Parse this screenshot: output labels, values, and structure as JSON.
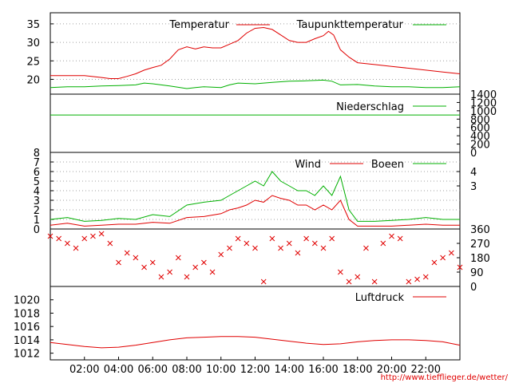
{
  "colors": {
    "red": "#e00000",
    "green": "#00b000",
    "black": "#000000",
    "grid": "#a0a0a0"
  },
  "credit": "http://www.tiefflieger.de/wetter/",
  "x_axis": {
    "labels": [
      "02:00",
      "04:00",
      "06:00",
      "08:00",
      "10:00",
      "12:00",
      "14:00",
      "16:00",
      "18:00",
      "20:00",
      "22:00"
    ],
    "hour_range": [
      0,
      24
    ],
    "label_hours": [
      2,
      4,
      6,
      8,
      10,
      12,
      14,
      16,
      18,
      20,
      22
    ]
  },
  "chart_data": [
    {
      "type": "line",
      "panel": "temperature",
      "ylim": [
        16,
        38
      ],
      "y_ticks": [
        20,
        25,
        30,
        35
      ],
      "grid": true,
      "legend_placement": "top",
      "series": [
        {
          "name": "Temperatur",
          "color": "#e00000",
          "x": [
            0,
            1,
            2,
            3,
            3.5,
            4,
            4.5,
            5,
            5.5,
            6,
            6.5,
            7,
            7.5,
            8,
            8.5,
            9,
            9.5,
            10,
            10.5,
            11,
            11.5,
            12,
            12.5,
            13,
            13.5,
            14,
            14.5,
            15,
            15.5,
            16,
            16.3,
            16.6,
            17,
            17.5,
            18,
            19,
            20,
            21,
            22,
            23,
            24
          ],
          "y": [
            21,
            21,
            21,
            20.5,
            20.2,
            20.2,
            20.8,
            21.5,
            22.5,
            23.2,
            23.8,
            25.5,
            28,
            28.8,
            28.2,
            28.8,
            28.5,
            28.5,
            29.5,
            30.5,
            32.5,
            33.8,
            34,
            33.5,
            32,
            30.5,
            30,
            30,
            31,
            31.8,
            33,
            32,
            28,
            26,
            24.5,
            24,
            23.5,
            23,
            22.5,
            22,
            21.5
          ]
        },
        {
          "name": "Taupunkttemperatur",
          "color": "#00b000",
          "x": [
            0,
            1,
            2,
            3,
            4,
            5,
            5.5,
            6,
            7,
            8,
            8.5,
            9,
            10,
            10.5,
            11,
            12,
            13,
            14,
            15,
            16,
            16.5,
            17,
            18,
            19,
            20,
            21,
            22,
            23,
            24
          ],
          "y": [
            17.8,
            18,
            18,
            18.2,
            18.3,
            18.5,
            19,
            18.8,
            18.2,
            17.5,
            17.8,
            18,
            17.8,
            18.5,
            19,
            18.8,
            19.2,
            19.5,
            19.6,
            19.8,
            19.5,
            18.5,
            18.6,
            18.2,
            18,
            18,
            17.8,
            17.8,
            18
          ]
        }
      ]
    },
    {
      "type": "line",
      "panel": "precipitation",
      "ylim": [
        0,
        1400
      ],
      "y_ticks": [
        0,
        200,
        400,
        600,
        800,
        1000,
        1200,
        1400
      ],
      "grid": false,
      "legend_placement": "top",
      "series": [
        {
          "name": "Niederschlag",
          "color": "#00b000",
          "x": [
            0,
            24
          ],
          "y": [
            900,
            900
          ]
        }
      ]
    },
    {
      "type": "line",
      "panel": "wind",
      "ylim": [
        0,
        8
      ],
      "y_ticks": [
        0,
        1,
        2,
        3,
        4,
        5,
        6,
        7,
        8
      ],
      "y2_ticks": [
        "3",
        "4"
      ],
      "grid": true,
      "legend_placement": "top",
      "series": [
        {
          "name": "Wind",
          "color": "#e00000",
          "x": [
            0,
            1,
            2,
            3,
            4,
            5,
            6,
            7,
            8,
            9,
            10,
            10.5,
            11,
            11.5,
            12,
            12.5,
            13,
            13.5,
            14,
            14.5,
            15,
            15.5,
            16,
            16.5,
            17,
            17.5,
            18,
            19,
            20,
            21,
            22,
            23,
            24
          ],
          "y": [
            0.4,
            0.6,
            0.3,
            0.4,
            0.5,
            0.5,
            0.7,
            0.6,
            1.2,
            1.3,
            1.6,
            2.0,
            2.2,
            2.5,
            3.0,
            2.8,
            3.5,
            3.2,
            3.0,
            2.5,
            2.5,
            2.0,
            2.5,
            2.0,
            3.0,
            1.0,
            0.3,
            0.3,
            0.3,
            0.4,
            0.5,
            0.4,
            0.4
          ]
        },
        {
          "name": "Boeen",
          "color": "#00b000",
          "x": [
            0,
            1,
            2,
            3,
            4,
            5,
            6,
            7,
            8,
            9,
            10,
            10.5,
            11,
            11.5,
            12,
            12.5,
            13,
            13.5,
            14,
            14.5,
            15,
            15.5,
            16,
            16.5,
            17,
            17.5,
            18,
            19,
            20,
            21,
            22,
            23,
            24
          ],
          "y": [
            1.0,
            1.2,
            0.8,
            0.9,
            1.1,
            1.0,
            1.5,
            1.3,
            2.5,
            2.8,
            3.0,
            3.5,
            4.0,
            4.5,
            5.0,
            4.5,
            6.0,
            5.0,
            4.5,
            4.0,
            4.0,
            3.5,
            4.5,
            3.5,
            5.5,
            2.0,
            0.8,
            0.8,
            0.9,
            1.0,
            1.2,
            1.0,
            1.0
          ]
        }
      ]
    },
    {
      "type": "scatter",
      "panel": "wind_direction",
      "ylim": [
        0,
        360
      ],
      "y_ticks": [
        0,
        90,
        180,
        270,
        360
      ],
      "grid": false,
      "series": [
        {
          "color": "#e00000",
          "x": [
            0,
            0.5,
            1,
            1.5,
            2,
            2.5,
            3,
            3.5,
            4,
            4.5,
            5,
            5.5,
            6,
            6.5,
            7,
            7.5,
            8,
            8.5,
            9,
            9.5,
            10,
            10.5,
            11,
            11.5,
            12,
            12.5,
            13,
            13.5,
            14,
            14.5,
            15,
            15.5,
            16,
            16.5,
            17,
            17.5,
            18,
            18.5,
            19,
            19.5,
            20,
            20.5,
            21,
            21.5,
            22,
            22.5,
            23,
            23.5,
            24
          ],
          "y": [
            315,
            300,
            270,
            240,
            300,
            315,
            330,
            270,
            150,
            210,
            180,
            120,
            150,
            60,
            90,
            180,
            60,
            120,
            150,
            90,
            200,
            240,
            300,
            270,
            240,
            30,
            300,
            240,
            270,
            210,
            300,
            270,
            240,
            300,
            90,
            30,
            60,
            240,
            30,
            270,
            315,
            300,
            30,
            45,
            60,
            150,
            180,
            210,
            120
          ]
        }
      ]
    },
    {
      "type": "line",
      "panel": "pressure",
      "ylim": [
        1011,
        1022
      ],
      "y_ticks": [
        1012,
        1014,
        1016,
        1018,
        1020
      ],
      "grid": false,
      "legend_placement": "top",
      "series": [
        {
          "name": "Luftdruck",
          "color": "#e00000",
          "x": [
            0,
            1,
            2,
            3,
            4,
            5,
            6,
            7,
            8,
            9,
            10,
            11,
            12,
            13,
            14,
            15,
            16,
            17,
            18,
            19,
            20,
            21,
            22,
            23,
            24
          ],
          "y": [
            1013.6,
            1013.3,
            1013.0,
            1012.8,
            1012.9,
            1013.2,
            1013.6,
            1014.0,
            1014.3,
            1014.4,
            1014.5,
            1014.5,
            1014.4,
            1014.1,
            1013.8,
            1013.5,
            1013.3,
            1013.4,
            1013.7,
            1013.9,
            1014.0,
            1014.0,
            1013.9,
            1013.7,
            1013.2
          ]
        }
      ]
    }
  ]
}
